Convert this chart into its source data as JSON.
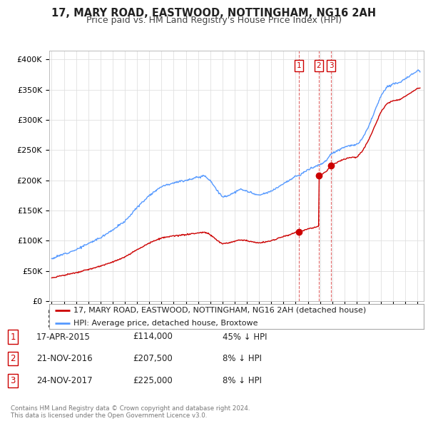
{
  "title": "17, MARY ROAD, EASTWOOD, NOTTINGHAM, NG16 2AH",
  "subtitle": "Price paid vs. HM Land Registry's House Price Index (HPI)",
  "yticks": [
    0,
    50000,
    100000,
    150000,
    200000,
    250000,
    300000,
    350000,
    400000
  ],
  "ytick_labels": [
    "£0",
    "£50K",
    "£100K",
    "£150K",
    "£200K",
    "£250K",
    "£300K",
    "£350K",
    "£400K"
  ],
  "ylim": [
    0,
    415000
  ],
  "xlim_start": 1994.8,
  "xlim_end": 2025.5,
  "hpi_color": "#5599ff",
  "price_color": "#cc0000",
  "legend_house_label": "17, MARY ROAD, EASTWOOD, NOTTINGHAM, NG16 2AH (detached house)",
  "legend_hpi_label": "HPI: Average price, detached house, Broxtowe",
  "transactions": [
    {
      "id": 1,
      "date": "17-APR-2015",
      "year": 2015.29,
      "price": 114000,
      "pct": "45% ↓ HPI"
    },
    {
      "id": 2,
      "date": "21-NOV-2016",
      "year": 2016.89,
      "price": 207500,
      "pct": "8% ↓ HPI"
    },
    {
      "id": 3,
      "date": "24-NOV-2017",
      "year": 2017.9,
      "price": 225000,
      "pct": "8% ↓ HPI"
    }
  ],
  "copyright": "Contains HM Land Registry data © Crown copyright and database right 2024.\nThis data is licensed under the Open Government Licence v3.0.",
  "bg_color": "#ffffff",
  "grid_color": "#e0e0e0",
  "title_fontsize": 10.5,
  "subtitle_fontsize": 9,
  "tick_fontsize": 8,
  "legend_fontsize": 8,
  "table_fontsize": 8.5
}
